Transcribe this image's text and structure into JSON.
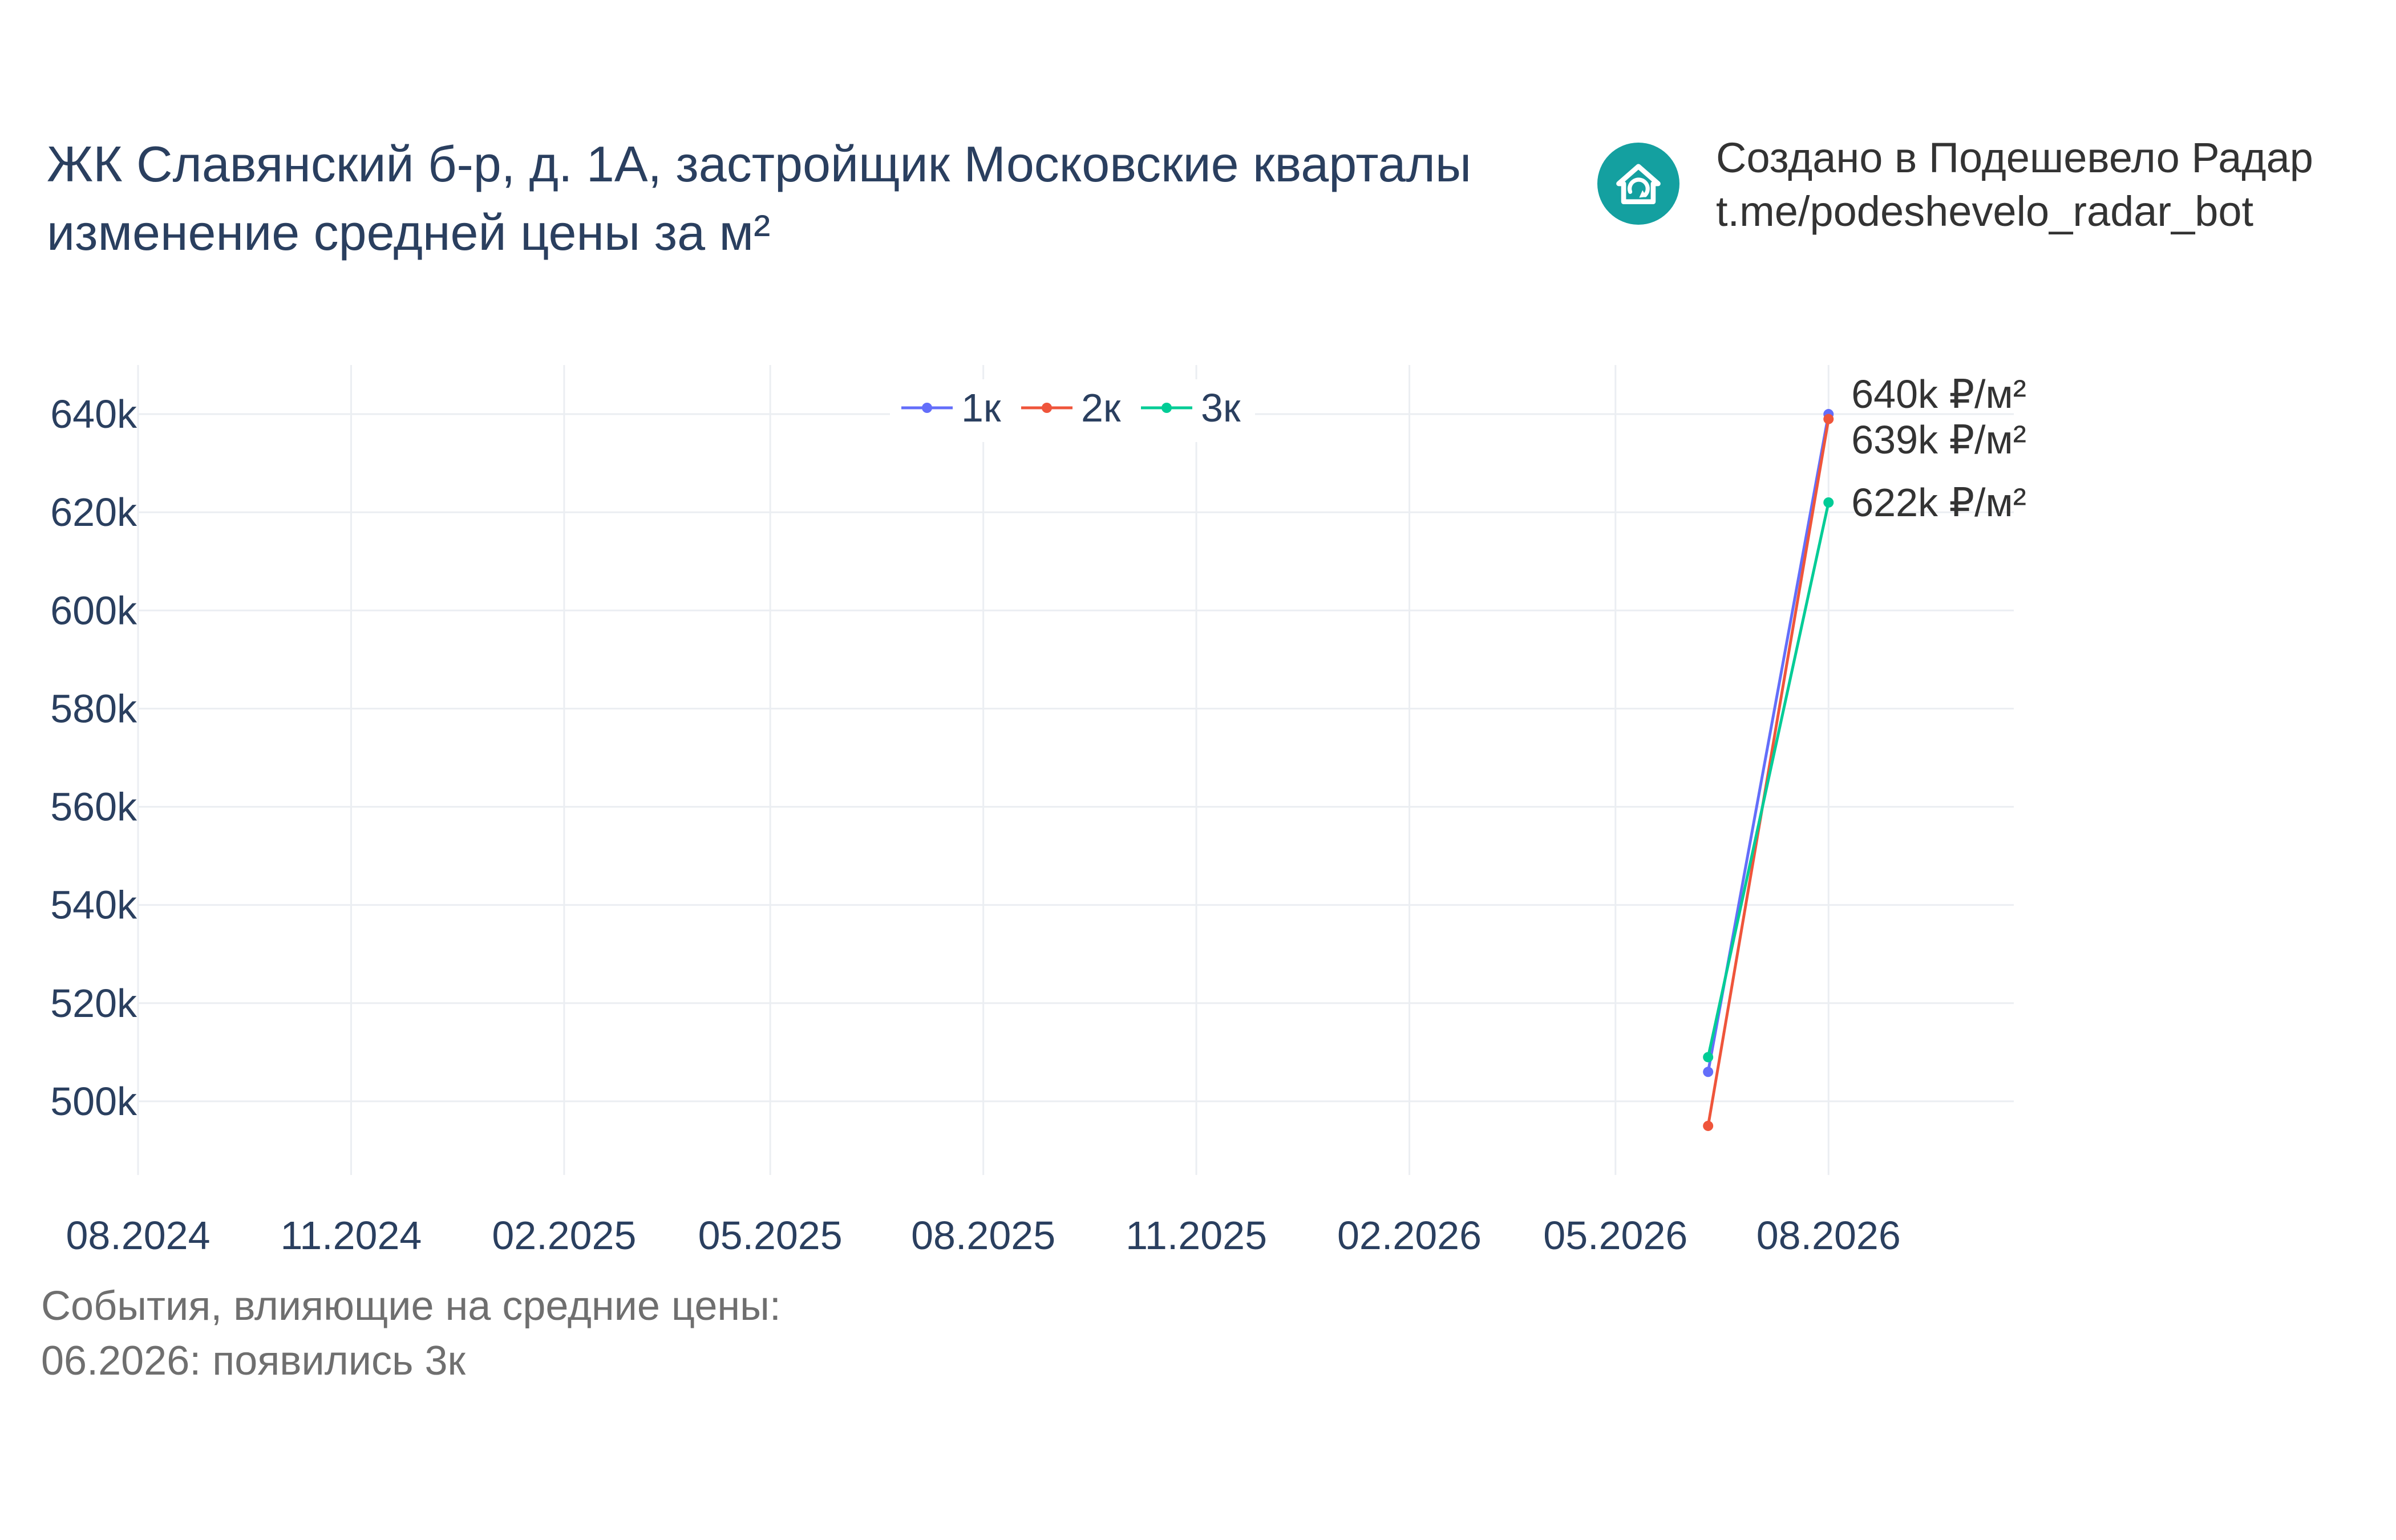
{
  "title": {
    "line1": "ЖК Славянский б-р, д. 1А, застройщик Московские кварталы",
    "line2": "изменение средней цены за м²"
  },
  "brand": {
    "line1": "Создано в Подешевело Радар",
    "line2": "t.me/podeshevelo_radar_bot",
    "logo_icon": "house-refresh-icon",
    "logo_color": "#14a0a0"
  },
  "events": {
    "heading": "События, влияющие на средние цены:",
    "items": [
      "06.2026: появились 3к"
    ]
  },
  "chart_data": {
    "type": "line",
    "xlabel": "",
    "ylabel": "",
    "x_ticks": [
      "08.2024",
      "11.2024",
      "02.2025",
      "05.2025",
      "08.2025",
      "11.2025",
      "02.2026",
      "05.2026",
      "08.2026"
    ],
    "x_tick_dates": [
      "2024-08-01",
      "2024-11-01",
      "2025-02-01",
      "2025-05-01",
      "2025-08-01",
      "2025-11-01",
      "2026-02-01",
      "2026-05-01",
      "2026-08-01"
    ],
    "xlim": [
      "2024-08-01",
      "2026-10-20"
    ],
    "y_ticks": [
      500000,
      520000,
      540000,
      560000,
      580000,
      600000,
      620000,
      640000
    ],
    "y_tick_labels": [
      "500k",
      "520k",
      "540k",
      "560k",
      "580k",
      "600k",
      "620k",
      "640k"
    ],
    "ylim": [
      485000,
      650000
    ],
    "grid": true,
    "legend_position": "top-center",
    "series": [
      {
        "name": "1к",
        "color": "#636efa",
        "points": [
          {
            "x": "2026-06-10",
            "y": 506000
          },
          {
            "x": "2026-08-01",
            "y": 640000
          }
        ],
        "end_label": "640k ₽/м²"
      },
      {
        "name": "2к",
        "color": "#ef553b",
        "points": [
          {
            "x": "2026-06-10",
            "y": 495000
          },
          {
            "x": "2026-08-01",
            "y": 639000
          }
        ],
        "end_label": "639k ₽/м²"
      },
      {
        "name": "3к",
        "color": "#00cc96",
        "points": [
          {
            "x": "2026-06-10",
            "y": 509000
          },
          {
            "x": "2026-08-01",
            "y": 622000
          }
        ],
        "end_label": "622k ₽/м²"
      }
    ]
  }
}
